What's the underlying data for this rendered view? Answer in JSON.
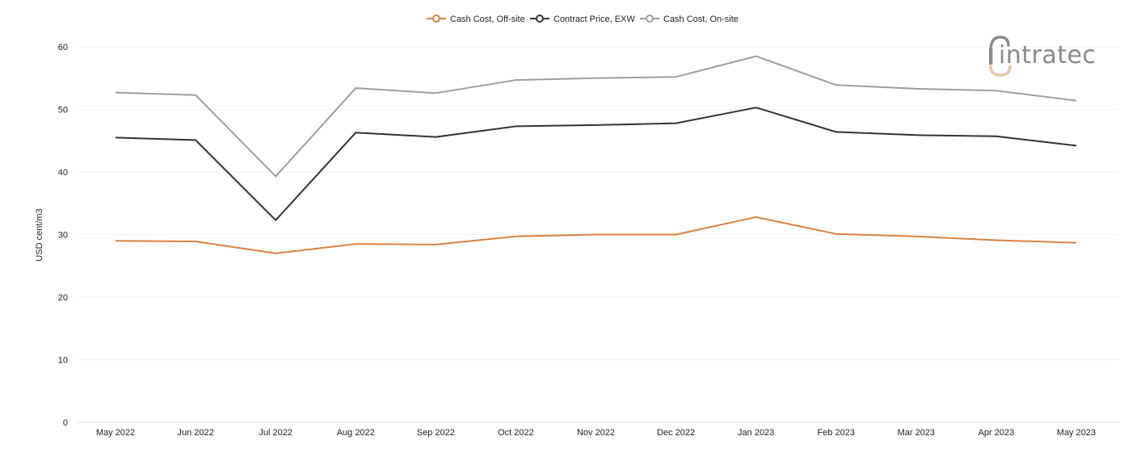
{
  "chart_data": {
    "type": "line",
    "title": "",
    "xlabel": "",
    "ylabel": "USD cent/m3",
    "ylim": [
      0,
      60
    ],
    "yticks": [
      0,
      10,
      20,
      30,
      40,
      50,
      60
    ],
    "grid": true,
    "legend_position": "top-center",
    "categories": [
      "May 2022",
      "Jun 2022",
      "Jul 2022",
      "Aug 2022",
      "Sep 2022",
      "Oct 2022",
      "Nov 2022",
      "Dec 2022",
      "Jan 2023",
      "Feb 2023",
      "Mar 2023",
      "Apr 2023",
      "May 2023"
    ],
    "series": [
      {
        "name": "Cash Cost, Off-site",
        "color": "#d9813f",
        "values": [
          29.0,
          28.9,
          27.0,
          28.5,
          28.4,
          29.7,
          30.0,
          30.0,
          32.8,
          30.1,
          29.7,
          29.1,
          28.7
        ]
      },
      {
        "name": "Contract Price, EXW",
        "color": "#333333",
        "values": [
          45.5,
          45.1,
          32.3,
          46.3,
          45.6,
          47.3,
          47.5,
          47.8,
          50.3,
          46.4,
          45.9,
          45.7,
          44.2
        ]
      },
      {
        "name": "Cash Cost, On-site",
        "color": "#9e9e9e",
        "values": [
          52.7,
          52.3,
          39.3,
          53.4,
          52.6,
          54.7,
          55.0,
          55.2,
          58.5,
          53.9,
          53.3,
          53.0,
          51.4
        ]
      }
    ]
  },
  "logo": {
    "text": "intratec",
    "icon": "intratec-logo-icon",
    "color": "#8a8a8a",
    "accent": "#e8c9a8"
  }
}
